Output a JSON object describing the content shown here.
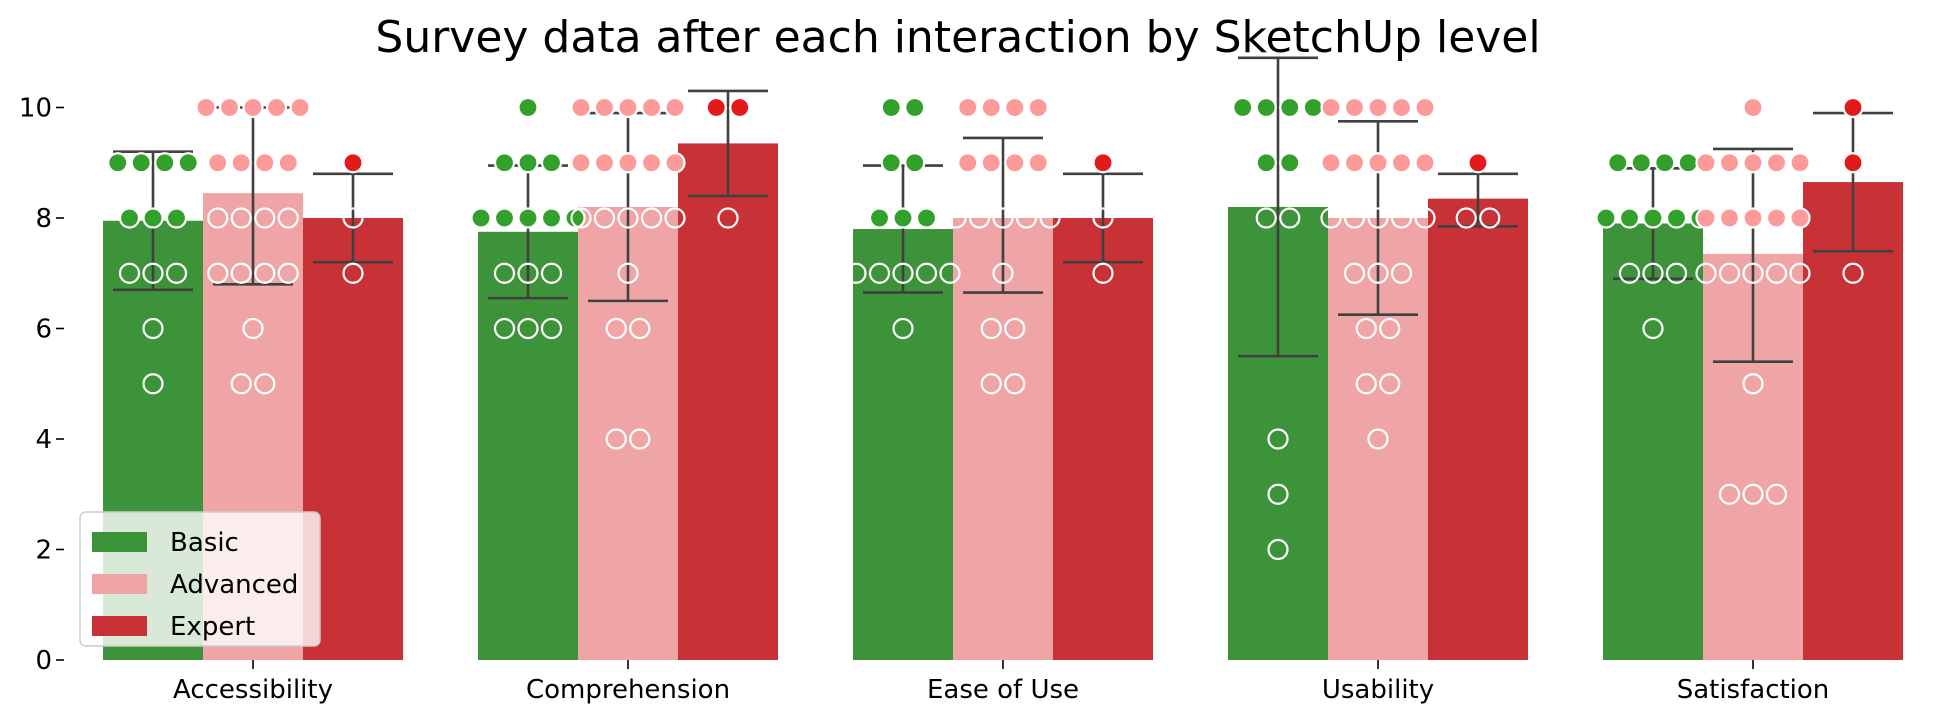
{
  "chart_data": {
    "type": "bar",
    "title": "Survey data after each interaction by SketchUp level",
    "xlabel": "",
    "ylabel": "",
    "ylim": [
      0,
      10.5
    ],
    "yticks": [
      0,
      2,
      4,
      6,
      8,
      10
    ],
    "categories": [
      "Accessibility",
      "Comprehension",
      "Ease of Use",
      "Usability",
      "Satisfaction"
    ],
    "legend": {
      "placement": "lower-left"
    },
    "colors": {
      "Basic": "#3d9339",
      "Advanced": "#efa5a5",
      "Expert": "#c83236",
      "Basic_point": "#33a02c",
      "Advanced_point": "#fb9a99",
      "Expert_point": "#e31a1c",
      "error_bar": "#404040"
    },
    "series": [
      {
        "name": "Basic",
        "values": [
          7.95,
          7.75,
          7.8,
          8.2,
          7.9
        ],
        "error": [
          [
            6.7,
            9.2
          ],
          [
            6.55,
            8.95
          ],
          [
            6.65,
            8.95
          ],
          [
            5.5,
            10.9
          ],
          [
            6.9,
            8.9
          ]
        ],
        "points": [
          [
            9,
            9,
            9,
            9,
            8,
            8,
            8,
            7,
            7,
            7,
            6,
            5
          ],
          [
            10,
            9,
            9,
            9,
            8,
            8,
            8,
            8,
            8,
            7,
            7,
            7,
            6,
            6,
            6
          ],
          [
            10,
            10,
            9,
            9,
            8,
            8,
            8,
            7,
            7,
            7,
            7,
            7,
            6
          ],
          [
            10,
            10,
            10,
            10,
            9,
            9,
            8,
            8,
            4,
            3,
            2
          ],
          [
            9,
            9,
            9,
            9,
            8,
            8,
            8,
            8,
            8,
            7,
            7,
            7,
            6
          ]
        ]
      },
      {
        "name": "Advanced",
        "values": [
          8.45,
          8.2,
          8.0,
          8.0,
          7.35
        ],
        "error": [
          [
            6.8,
            10.0
          ],
          [
            6.5,
            9.9
          ],
          [
            6.65,
            9.45
          ],
          [
            6.25,
            9.75
          ],
          [
            5.4,
            9.25
          ]
        ],
        "points": [
          [
            10,
            10,
            10,
            10,
            10,
            9,
            9,
            9,
            9,
            8,
            8,
            8,
            8,
            7,
            7,
            7,
            7,
            6,
            5,
            5
          ],
          [
            10,
            10,
            10,
            10,
            10,
            9,
            9,
            9,
            9,
            9,
            8,
            8,
            8,
            8,
            8,
            7,
            6,
            6,
            4,
            4
          ],
          [
            10,
            10,
            10,
            10,
            9,
            9,
            9,
            9,
            8,
            8,
            8,
            8,
            8,
            7,
            6,
            6,
            5,
            5
          ],
          [
            10,
            10,
            10,
            10,
            10,
            9,
            9,
            9,
            9,
            9,
            8,
            8,
            8,
            8,
            8,
            7,
            7,
            7,
            6,
            6,
            5,
            5,
            4
          ],
          [
            10,
            9,
            9,
            9,
            9,
            9,
            8,
            8,
            8,
            8,
            8,
            7,
            7,
            7,
            7,
            7,
            5,
            3,
            3,
            3
          ]
        ]
      },
      {
        "name": "Expert",
        "values": [
          8.0,
          9.35,
          8.0,
          8.35,
          8.65
        ],
        "error": [
          [
            7.2,
            8.8
          ],
          [
            8.4,
            10.3
          ],
          [
            7.2,
            8.8
          ],
          [
            7.85,
            8.8
          ],
          [
            7.4,
            9.9
          ]
        ],
        "points": [
          [
            9,
            8,
            7
          ],
          [
            10,
            10,
            8
          ],
          [
            9,
            8,
            7
          ],
          [
            9,
            8,
            8
          ],
          [
            10,
            9,
            7
          ]
        ]
      }
    ]
  }
}
